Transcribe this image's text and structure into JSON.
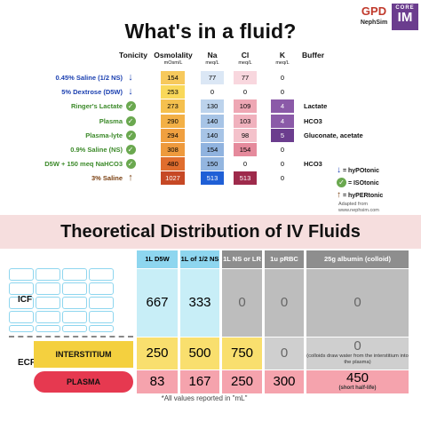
{
  "title": "What's in a fluid?",
  "logo": {
    "monogram": "GPD",
    "brand": "NephSim",
    "core": "CORE",
    "im": "IM"
  },
  "headers": {
    "tonicity": "Tonicity",
    "osmolality": "Osmolality",
    "osmolality_unit": "mOsm/L",
    "na": "Na",
    "na_unit": "meq/L",
    "cl": "Cl",
    "cl_unit": "meq/L",
    "k": "K",
    "k_unit": "meq/L",
    "buffer": "Buffer"
  },
  "rows": [
    {
      "label": "0.45% Saline (1/2 NS)",
      "color": "#1a3fb0",
      "tonicity": "hypo",
      "osm": "154",
      "na": "77",
      "cl": "77",
      "k": "0",
      "buffer": "",
      "osm_bg": "#f7c95c",
      "na_bg": "#dbe7f5",
      "cl_bg": "#f8d7de",
      "k_bg": "",
      "k_color": "#000"
    },
    {
      "label": "5% Dextrose (D5W)",
      "color": "#1a3fb0",
      "tonicity": "hypo",
      "osm": "253",
      "na": "0",
      "cl": "0",
      "k": "0",
      "buffer": "",
      "osm_bg": "#f9d85a",
      "na_bg": "",
      "cl_bg": "",
      "k_bg": "",
      "k_color": "#000"
    },
    {
      "label": "Ringer's Lactate",
      "color": "#3c8a2a",
      "tonicity": "iso",
      "osm": "273",
      "na": "130",
      "cl": "109",
      "k": "4",
      "buffer": "Lactate",
      "osm_bg": "#f5c04e",
      "na_bg": "#bcd3ec",
      "cl_bg": "#eea7b4",
      "k_bg": "#8b5aa8",
      "k_color": "#fff"
    },
    {
      "label": "Plasma",
      "color": "#3c8a2a",
      "tonicity": "iso",
      "osm": "290",
      "na": "140",
      "cl": "103",
      "k": "4",
      "buffer": "HCO3",
      "osm_bg": "#f3b046",
      "na_bg": "#a7c4e6",
      "cl_bg": "#f0b1bd",
      "k_bg": "#8b5aa8",
      "k_color": "#fff"
    },
    {
      "label": "Plasma-lyte",
      "color": "#3c8a2a",
      "tonicity": "iso",
      "osm": "294",
      "na": "140",
      "cl": "98",
      "k": "5",
      "buffer": "Gluconate, acetate",
      "osm_bg": "#f0a040",
      "na_bg": "#a7c4e6",
      "cl_bg": "#f4c2cb",
      "k_bg": "#6b3d8e",
      "k_color": "#fff"
    },
    {
      "label": "0.9% Saline (NS)",
      "color": "#3c8a2a",
      "tonicity": "iso",
      "osm": "308",
      "na": "154",
      "cl": "154",
      "k": "0",
      "buffer": "",
      "osm_bg": "#ee9a3d",
      "na_bg": "#90b3df",
      "cl_bg": "#e58a9c",
      "k_bg": "",
      "k_color": "#000"
    },
    {
      "label": "D5W + 150 meq NaHCO3",
      "color": "#3c8a2a",
      "tonicity": "iso",
      "osm": "480",
      "na": "150",
      "cl": "0",
      "k": "0",
      "buffer": "HCO3",
      "osm_bg": "#e06d2e",
      "na_bg": "#94b6e0",
      "cl_bg": "",
      "k_bg": "",
      "k_color": "#000"
    },
    {
      "label": "3% Saline",
      "color": "#7a3f10",
      "tonicity": "hyper",
      "osm": "1027",
      "na": "513",
      "cl": "513",
      "k": "0",
      "buffer": "",
      "osm_bg": "#c64825",
      "na_bg": "#1f5fd6",
      "cl_bg": "#9e2a4b",
      "k_bg": "",
      "k_color": "#000",
      "na_color": "#fff",
      "cl_color": "#fff",
      "osm_color": "#fff"
    }
  ],
  "legend": {
    "hypo": "= hyPOtonic",
    "iso": "= ISOtonic",
    "hyper": "= hyPERtonic"
  },
  "adapted": "Adapted from www.nephsim.com",
  "title2": "Theoretical Distribution of IV Fluids",
  "dist_headers": [
    "1L D5W",
    "1L of 1/2 NS",
    "1L NS or LR",
    "1u pRBC",
    "25g albumin (colloid)"
  ],
  "icf_label": "ICF",
  "ecf_label": "ECF",
  "interstitium_label": "INTERSTITIUM",
  "plasma_label": "PLASMA",
  "icf": [
    "667",
    "333",
    "0",
    "0",
    "0"
  ],
  "interstitium": [
    "250",
    "500",
    "750",
    "0",
    "0"
  ],
  "interstitium_note": "(colloids draw water from the interstitium into the plasma)",
  "plasma": [
    "83",
    "167",
    "250",
    "300",
    "450"
  ],
  "plasma_note": "(short half-life)",
  "footnote": "*All values reported in \"mL\""
}
